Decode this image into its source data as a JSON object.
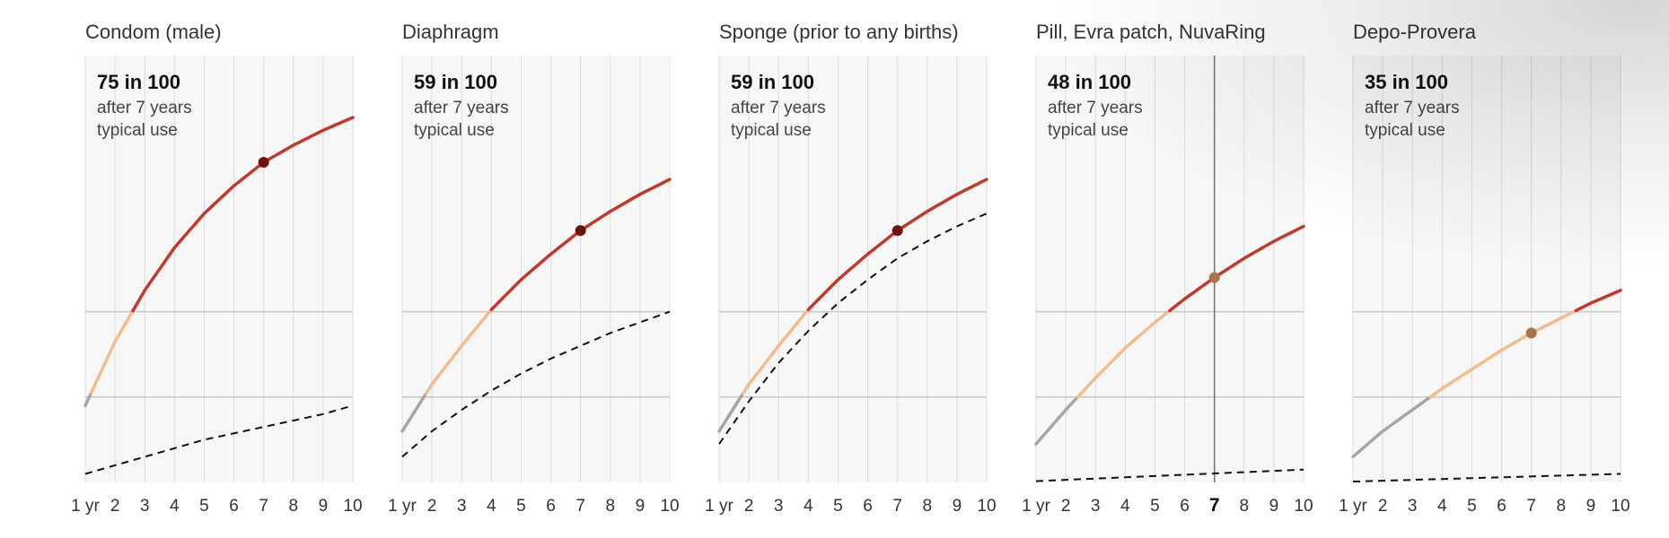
{
  "chart_data": [
    {
      "type": "line",
      "title": "Condom (male)",
      "stat": {
        "value": "75 in 100",
        "line1": "after 7 years",
        "line2": "typical use"
      },
      "x": [
        1,
        2,
        3,
        4,
        5,
        6,
        7,
        8,
        9,
        10
      ],
      "xticklabels": [
        "1 yr",
        "2",
        "3",
        "4",
        "5",
        "6",
        "7",
        "8",
        "9",
        "10"
      ],
      "ylim": [
        0,
        100
      ],
      "series": [
        {
          "role": "typical",
          "values": [
            18,
            33,
            45,
            55,
            63,
            69.5,
            75,
            79,
            82.5,
            85.5
          ]
        },
        {
          "role": "perfect",
          "dashed": true,
          "values": [
            2,
            4,
            6,
            8,
            10,
            11.5,
            13,
            14.5,
            16,
            18
          ]
        }
      ],
      "highlight": {
        "x": 7,
        "y": 75
      }
    },
    {
      "type": "line",
      "title": "Diaphragm",
      "stat": {
        "value": "59 in 100",
        "line1": "after 7 years",
        "line2": "typical use"
      },
      "x": [
        1,
        2,
        3,
        4,
        5,
        6,
        7,
        8,
        9,
        10
      ],
      "xticklabels": [
        "1 yr",
        "2",
        "3",
        "4",
        "5",
        "6",
        "7",
        "8",
        "9",
        "10"
      ],
      "ylim": [
        0,
        100
      ],
      "series": [
        {
          "role": "typical",
          "values": [
            12,
            23,
            32,
            40.5,
            47.5,
            53.5,
            59,
            63.5,
            67.5,
            71
          ]
        },
        {
          "role": "perfect",
          "dashed": true,
          "values": [
            6,
            12,
            17,
            21.5,
            25.5,
            29,
            32,
            35,
            37.5,
            40
          ]
        }
      ],
      "highlight": {
        "x": 7,
        "y": 59
      }
    },
    {
      "type": "line",
      "title": "Sponge (prior to any births)",
      "stat": {
        "value": "59 in 100",
        "line1": "after 7 years",
        "line2": "typical use"
      },
      "x": [
        1,
        2,
        3,
        4,
        5,
        6,
        7,
        8,
        9,
        10
      ],
      "xticklabels": [
        "1 yr",
        "2",
        "3",
        "4",
        "5",
        "6",
        "7",
        "8",
        "9",
        "10"
      ],
      "ylim": [
        0,
        100
      ],
      "series": [
        {
          "role": "typical",
          "values": [
            12,
            23,
            32,
            40.5,
            47.5,
            53.5,
            59,
            63.5,
            67.5,
            71
          ]
        },
        {
          "role": "perfect",
          "dashed": true,
          "values": [
            9,
            19,
            28,
            35.5,
            42,
            47.5,
            52.5,
            56.5,
            60,
            63
          ]
        }
      ],
      "highlight": {
        "x": 7,
        "y": 59
      }
    },
    {
      "type": "line",
      "title": "Pill, Evra patch, NuvaRing",
      "stat": {
        "value": "48 in 100",
        "line1": "after 7 years",
        "line2": "typical use"
      },
      "x": [
        1,
        2,
        3,
        4,
        5,
        6,
        7,
        8,
        9,
        10
      ],
      "xticklabels": [
        "1 yr",
        "2",
        "3",
        "4",
        "5",
        "6",
        "7",
        "8",
        "9",
        "10"
      ],
      "highlight_tick": "7",
      "ylim": [
        0,
        100
      ],
      "series": [
        {
          "role": "typical",
          "values": [
            9,
            17,
            24.5,
            31.5,
            37.5,
            43,
            48,
            52.5,
            56.5,
            60
          ]
        },
        {
          "role": "perfect",
          "dashed": true,
          "values": [
            0.3,
            0.6,
            0.9,
            1.2,
            1.5,
            1.8,
            2.1,
            2.4,
            2.7,
            3
          ]
        }
      ],
      "highlight": {
        "x": 7,
        "y": 48
      },
      "marker_line_x": 7
    },
    {
      "type": "line",
      "title": "Depo-Provera",
      "stat": {
        "value": "35 in 100",
        "line1": "after 7 years",
        "line2": "typical use"
      },
      "x": [
        1,
        2,
        3,
        4,
        5,
        6,
        7,
        8,
        9,
        10
      ],
      "xticklabels": [
        "1 yr",
        "2",
        "3",
        "4",
        "5",
        "6",
        "7",
        "8",
        "9",
        "10"
      ],
      "ylim": [
        0,
        100
      ],
      "series": [
        {
          "role": "typical",
          "values": [
            6,
            12,
            17,
            22,
            26.5,
            31,
            35,
            38.5,
            42,
            45
          ]
        },
        {
          "role": "perfect",
          "dashed": true,
          "values": [
            0.2,
            0.4,
            0.6,
            0.8,
            1,
            1.2,
            1.4,
            1.6,
            1.8,
            2
          ]
        }
      ],
      "highlight": {
        "x": 7,
        "y": 35
      }
    }
  ],
  "colors": {
    "grey_segment": "#a6a6a6",
    "light_segment": "#f2bc8c",
    "dark_segment": "#c0392b",
    "dot_dark": "#6e1410",
    "dot_light": "#a8744a",
    "dashed": "#111111",
    "panel_bg": "#f7f7f7",
    "gridline": "#dcdcdc",
    "refline": "#c8c8c8",
    "marker_line": "#707070"
  }
}
